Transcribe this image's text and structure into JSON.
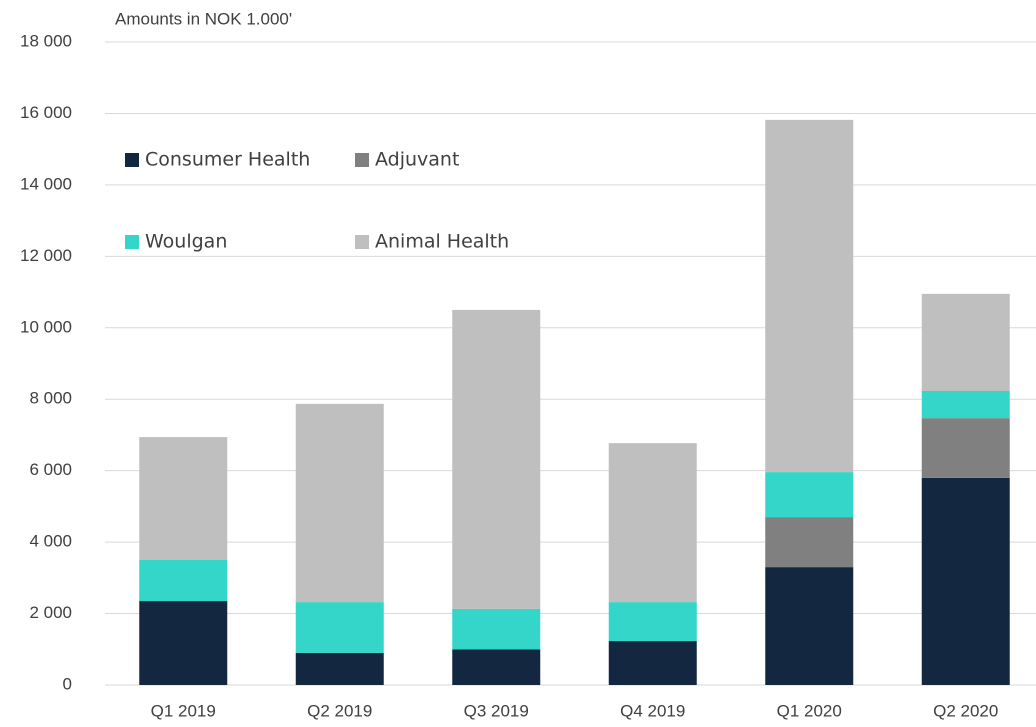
{
  "chart_data": {
    "type": "stacked_bar",
    "title": "Amounts in NOK 1.000'",
    "categories": [
      "Q1 2019",
      "Q2 2019",
      "Q3 2019",
      "Q4 2019",
      "Q1 2020",
      "Q2 2020"
    ],
    "series": [
      {
        "name": "Consumer Health",
        "color": "#132840",
        "values": [
          2350,
          900,
          1000,
          1230,
          3300,
          5800
        ]
      },
      {
        "name": "Adjuvant",
        "color": "#808080",
        "values": [
          0,
          0,
          0,
          0,
          1400,
          1670
        ]
      },
      {
        "name": "Woulgan",
        "color": "#33d6c8",
        "values": [
          1150,
          1420,
          1130,
          1090,
          1260,
          760
        ]
      },
      {
        "name": "Animal Health",
        "color": "#bfbfbf",
        "values": [
          3440,
          5550,
          8370,
          4450,
          9860,
          2720
        ]
      }
    ],
    "ylim": [
      0,
      18000
    ],
    "yticks": [
      0,
      {
        "value": 2000,
        "label": "2 000"
      },
      {
        "value": 4000,
        "label": "4 000"
      },
      {
        "value": 6000,
        "label": "6 000"
      },
      {
        "value": 8000,
        "label": "8 000"
      },
      {
        "value": 10000,
        "label": "10 000"
      },
      {
        "value": 12000,
        "label": "12 000"
      },
      {
        "value": 14000,
        "label": "14 000"
      },
      {
        "value": 16000,
        "label": "16 000"
      },
      {
        "value": 18000,
        "label": "18 000"
      }
    ],
    "grid": true
  }
}
